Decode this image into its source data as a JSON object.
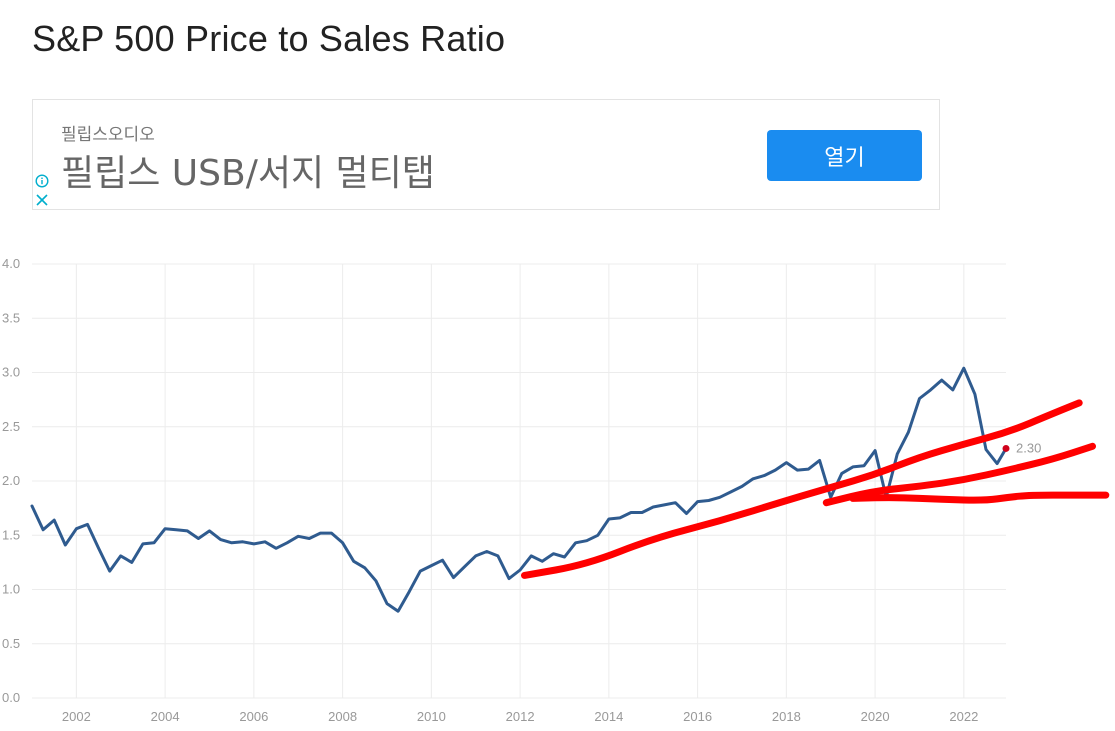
{
  "page": {
    "title": "S&P 500 Price to Sales Ratio"
  },
  "ad": {
    "advertiser": "필립스오디오",
    "headline": "필립스 USB/서지 멀티탭",
    "button_label": "열기",
    "info_icon": "info-icon",
    "close_icon": "close-icon"
  },
  "colors": {
    "series": "#2f5b8f",
    "annotation": "#ff0000",
    "last_point": "#d0021b",
    "grid": "#ececec",
    "tick_text": "#999999"
  },
  "chart_data": {
    "type": "line",
    "title": "",
    "xlabel": "",
    "ylabel": "",
    "xlim": [
      2001.0,
      2022.95
    ],
    "ylim": [
      0,
      4.0
    ],
    "grid": true,
    "x_ticks": [
      "2002",
      "2004",
      "2006",
      "2008",
      "2010",
      "2012",
      "2014",
      "2016",
      "2018",
      "2020",
      "2022"
    ],
    "y_ticks": [
      "0.0",
      "0.5",
      "1.0",
      "1.5",
      "2.0",
      "2.5",
      "3.0",
      "3.5",
      "4.0"
    ],
    "series": [
      {
        "name": "",
        "color": "#2f5b8f",
        "points": [
          [
            2001.0,
            1.77
          ],
          [
            2001.25,
            1.55
          ],
          [
            2001.5,
            1.64
          ],
          [
            2001.75,
            1.41
          ],
          [
            2002.0,
            1.56
          ],
          [
            2002.25,
            1.6
          ],
          [
            2002.5,
            1.38
          ],
          [
            2002.75,
            1.17
          ],
          [
            2003.0,
            1.31
          ],
          [
            2003.25,
            1.25
          ],
          [
            2003.5,
            1.42
          ],
          [
            2003.75,
            1.43
          ],
          [
            2004.0,
            1.56
          ],
          [
            2004.25,
            1.55
          ],
          [
            2004.5,
            1.54
          ],
          [
            2004.75,
            1.47
          ],
          [
            2005.0,
            1.54
          ],
          [
            2005.25,
            1.46
          ],
          [
            2005.5,
            1.43
          ],
          [
            2005.75,
            1.44
          ],
          [
            2006.0,
            1.42
          ],
          [
            2006.25,
            1.44
          ],
          [
            2006.5,
            1.38
          ],
          [
            2006.75,
            1.43
          ],
          [
            2007.0,
            1.49
          ],
          [
            2007.25,
            1.47
          ],
          [
            2007.5,
            1.52
          ],
          [
            2007.75,
            1.52
          ],
          [
            2008.0,
            1.43
          ],
          [
            2008.25,
            1.26
          ],
          [
            2008.5,
            1.2
          ],
          [
            2008.75,
            1.08
          ],
          [
            2009.0,
            0.87
          ],
          [
            2009.25,
            0.8
          ],
          [
            2009.5,
            0.98
          ],
          [
            2009.75,
            1.17
          ],
          [
            2010.0,
            1.22
          ],
          [
            2010.25,
            1.27
          ],
          [
            2010.5,
            1.11
          ],
          [
            2010.75,
            1.21
          ],
          [
            2011.0,
            1.31
          ],
          [
            2011.25,
            1.35
          ],
          [
            2011.5,
            1.31
          ],
          [
            2011.75,
            1.1
          ],
          [
            2012.0,
            1.18
          ],
          [
            2012.25,
            1.31
          ],
          [
            2012.5,
            1.26
          ],
          [
            2012.75,
            1.33
          ],
          [
            2013.0,
            1.3
          ],
          [
            2013.25,
            1.43
          ],
          [
            2013.5,
            1.45
          ],
          [
            2013.75,
            1.5
          ],
          [
            2014.0,
            1.65
          ],
          [
            2014.25,
            1.66
          ],
          [
            2014.5,
            1.71
          ],
          [
            2014.75,
            1.71
          ],
          [
            2015.0,
            1.76
          ],
          [
            2015.25,
            1.78
          ],
          [
            2015.5,
            1.8
          ],
          [
            2015.75,
            1.7
          ],
          [
            2016.0,
            1.81
          ],
          [
            2016.25,
            1.82
          ],
          [
            2016.5,
            1.85
          ],
          [
            2016.75,
            1.9
          ],
          [
            2017.0,
            1.95
          ],
          [
            2017.25,
            2.02
          ],
          [
            2017.5,
            2.05
          ],
          [
            2017.75,
            2.1
          ],
          [
            2018.0,
            2.17
          ],
          [
            2018.25,
            2.1
          ],
          [
            2018.5,
            2.11
          ],
          [
            2018.75,
            2.19
          ],
          [
            2019.0,
            1.85
          ],
          [
            2019.25,
            2.07
          ],
          [
            2019.5,
            2.13
          ],
          [
            2019.75,
            2.14
          ],
          [
            2020.0,
            2.28
          ],
          [
            2020.25,
            1.85
          ],
          [
            2020.5,
            2.25
          ],
          [
            2020.75,
            2.45
          ],
          [
            2021.0,
            2.76
          ],
          [
            2021.25,
            2.84
          ],
          [
            2021.5,
            2.93
          ],
          [
            2021.75,
            2.84
          ],
          [
            2022.0,
            3.04
          ],
          [
            2022.25,
            2.8
          ],
          [
            2022.5,
            2.29
          ],
          [
            2022.75,
            2.16
          ],
          [
            2022.95,
            2.3
          ]
        ],
        "last_value_label": "2.30"
      }
    ],
    "annotations": [
      {
        "type": "hand-drawn-trend",
        "color": "#ff0000",
        "points": [
          [
            2012.1,
            1.13
          ],
          [
            2013.5,
            1.23
          ],
          [
            2015.0,
            1.47
          ],
          [
            2016.5,
            1.63
          ],
          [
            2018.0,
            1.82
          ],
          [
            2019.0,
            1.94
          ],
          [
            2020.0,
            2.06
          ],
          [
            2021.0,
            2.22
          ],
          [
            2022.0,
            2.34
          ],
          [
            2023.0,
            2.45
          ],
          [
            2024.0,
            2.62
          ],
          [
            2024.6,
            2.72
          ]
        ]
      },
      {
        "type": "hand-drawn-trend",
        "color": "#ff0000",
        "points": [
          [
            2018.9,
            1.8
          ],
          [
            2020.0,
            1.91
          ],
          [
            2021.0,
            1.95
          ],
          [
            2022.0,
            2.01
          ],
          [
            2023.0,
            2.1
          ],
          [
            2024.0,
            2.2
          ],
          [
            2024.9,
            2.32
          ]
        ]
      },
      {
        "type": "hand-drawn-trend",
        "color": "#ff0000",
        "points": [
          [
            2019.5,
            1.84
          ],
          [
            2020.5,
            1.85
          ],
          [
            2021.5,
            1.83
          ],
          [
            2022.5,
            1.82
          ],
          [
            2023.0,
            1.85
          ],
          [
            2023.5,
            1.87
          ],
          [
            2024.5,
            1.87
          ],
          [
            2025.2,
            1.87
          ]
        ]
      }
    ]
  }
}
